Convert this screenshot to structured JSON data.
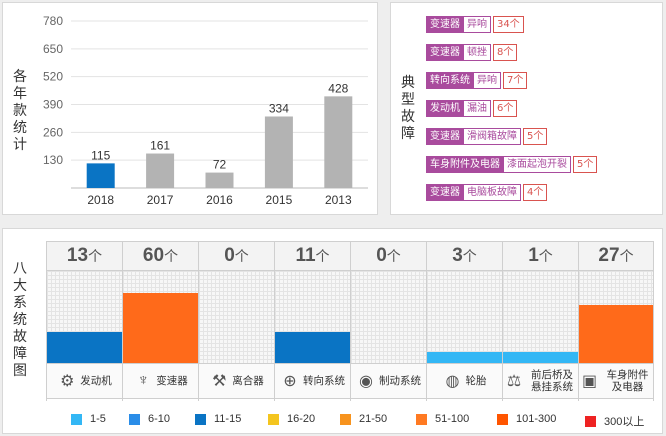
{
  "bar_panel": {
    "y_label": "各年款统计"
  },
  "chart_data": {
    "type": "bar",
    "categories": [
      "2018",
      "2017",
      "2016",
      "2015",
      "2013"
    ],
    "values": [
      115,
      161,
      72,
      334,
      428
    ],
    "ylabel": "各年款统计",
    "yticks": [
      130,
      260,
      390,
      520,
      650,
      780
    ],
    "ylim": [
      0,
      780
    ],
    "grid": true,
    "highlight_color": "#0a74c4",
    "bar_color": "#b3b3b3"
  },
  "faults_panel": {
    "title": "典型故障",
    "items": [
      {
        "system": "变速器",
        "issue": "异响",
        "count": "34个"
      },
      {
        "system": "变速器",
        "issue": "顿挫",
        "count": "8个"
      },
      {
        "system": "转向系统",
        "issue": "异响",
        "count": "7个"
      },
      {
        "system": "发动机",
        "issue": "漏油",
        "count": "6个"
      },
      {
        "system": "变速器",
        "issue": "滑阀箱故障",
        "count": "5个"
      },
      {
        "system": "车身附件及电器",
        "issue": "漆面起泡开裂",
        "count": "5个"
      },
      {
        "system": "变速器",
        "issue": "电脑板故障",
        "count": "4个"
      }
    ]
  },
  "systems_panel": {
    "title": "八大系统故障图",
    "unit": "个",
    "systems": [
      {
        "name": "发动机",
        "count": "13",
        "level": 0.34,
        "color": "#0a74c4",
        "icon": "engine-icon",
        "glyph": "⚙"
      },
      {
        "name": "变速器",
        "count": "60",
        "level": 0.76,
        "color": "#ff6a1a",
        "icon": "gear-shift-icon",
        "glyph": "♆"
      },
      {
        "name": "离合器",
        "count": "0",
        "level": 0,
        "color": "#cccccc",
        "icon": "clutch-icon",
        "glyph": "⚒"
      },
      {
        "name": "转向系统",
        "count": "11",
        "level": 0.34,
        "color": "#0a74c4",
        "icon": "steering-wheel-icon",
        "glyph": "⊕"
      },
      {
        "name": "制动系统",
        "count": "0",
        "level": 0,
        "color": "#cccccc",
        "icon": "brake-icon",
        "glyph": "◉"
      },
      {
        "name": "轮胎",
        "count": "3",
        "level": 0.12,
        "color": "#33b7f5",
        "icon": "tire-icon",
        "glyph": "◍"
      },
      {
        "name": "前后桥及悬挂系统",
        "count": "1",
        "level": 0.12,
        "color": "#33b7f5",
        "icon": "suspension-icon",
        "glyph": "⚖"
      },
      {
        "name": "车身附件及电器",
        "count": "27",
        "level": 0.63,
        "color": "#ff6a1a",
        "icon": "battery-icon",
        "glyph": "▣"
      }
    ],
    "legend": [
      {
        "label": "1-5",
        "color": "#33b7f5"
      },
      {
        "label": "6-10",
        "color": "#2a8de8"
      },
      {
        "label": "11-15",
        "color": "#0a74c4"
      },
      {
        "label": "16-20",
        "color": "#f4c51f"
      },
      {
        "label": "21-50",
        "color": "#f7931e"
      },
      {
        "label": "51-100",
        "color": "#ff7a22"
      },
      {
        "label": "101-300",
        "color": "#ff5500"
      },
      {
        "label": "300以上",
        "color": "#ee2222"
      }
    ]
  }
}
